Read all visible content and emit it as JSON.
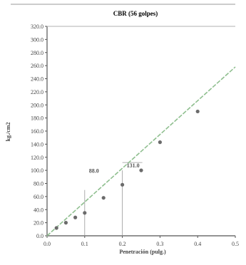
{
  "chart_data": {
    "type": "scatter",
    "title": "CBR (56 golpes)",
    "xlabel": "Penetración (pulg.)",
    "ylabel": "kg./cm2",
    "xlim": [
      0,
      0.5
    ],
    "ylim": [
      0,
      320
    ],
    "x_ticks": [
      "0.0",
      "0.1",
      "0.2",
      "0.3",
      "0.4",
      "0.5"
    ],
    "y_ticks": [
      "0.0",
      "20.0",
      "40.0",
      "60.0",
      "80.0",
      "100.0",
      "120.0",
      "140.0",
      "160.0",
      "180.0",
      "200.0",
      "220.0",
      "240.0",
      "260.0",
      "280.0",
      "300.0",
      "320.0"
    ],
    "grid": false,
    "series": [
      {
        "points": [
          [
            0.025,
            12
          ],
          [
            0.05,
            20
          ],
          [
            0.075,
            28
          ],
          [
            0.1,
            35
          ],
          [
            0.15,
            58
          ],
          [
            0.2,
            78
          ],
          [
            0.25,
            100
          ],
          [
            0.3,
            143
          ],
          [
            0.4,
            190
          ]
        ]
      }
    ],
    "trendline": [
      [
        0.0,
        0
      ],
      [
        0.5,
        258
      ]
    ],
    "annotations": [
      {
        "text": "88.0",
        "x": 0.1,
        "y": 70
      },
      {
        "text": "131.0",
        "x": 0.2,
        "y": 100
      }
    ],
    "colors": {
      "points": "#6b6b6b",
      "trend": "#8fbf8f",
      "axis": "#555555",
      "guide": "#999999"
    }
  }
}
